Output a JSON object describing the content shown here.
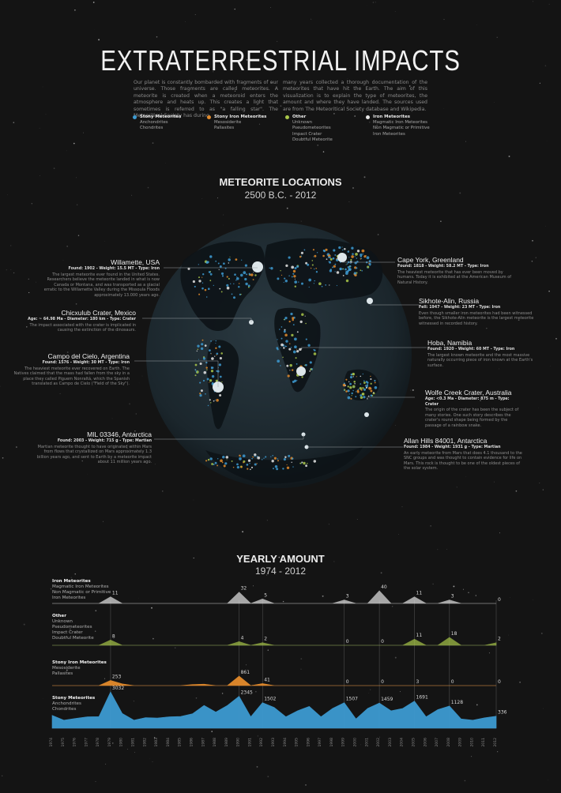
{
  "header": {
    "title": "EXTRATERRESTRIAL IMPACTS",
    "intro_left": "Our planet is constantly bombarded with fragments of our universe. Those fragments are called meteorites. A meteorite is created when a meteoroid enters the atmosphere and heats up. This creates a light that sometimes is referred to as \"a falling star\". The Meteoritical Society has during",
    "intro_right": "many years collected a thorough documentation of the meteorites that have hit the Earth. The aim of this visualization is to explain the type of meteorites, the amount and where they have landed. The sources used are from The Meteoritical Society database and Wikipedia."
  },
  "legend": [
    {
      "head": "Stony Meteorites",
      "items": [
        "Anchondrites",
        "Chondrites"
      ],
      "color": "#3d9ad1"
    },
    {
      "head": "Stony Iron Meteorites",
      "items": [
        "Mesosiderite",
        "Pallasites"
      ],
      "color": "#e38b2c"
    },
    {
      "head": "Other",
      "items": [
        "Unknown",
        "Pseudometeorites",
        "Impact Crater",
        "Doubtful Meteorite"
      ],
      "color": "#a9c74a"
    },
    {
      "head": "Iron Meteorites",
      "items": [
        "Magmatic Iron Meteorites",
        "Non Magmatic or Primitive",
        "Iron Meteorites"
      ],
      "color": "#e6e6e6"
    }
  ],
  "map": {
    "title": "METEORITE LOCATIONS",
    "subtitle": "2500 B.C. - 2012",
    "annotations": [
      {
        "name": "Willamette, USA",
        "meta": "Found: 1902 - Weight: 15.5 MT - Type: Iron",
        "desc": "The largest meteorite ever found in the United States. Researchers believe the meteorite landed in what is now Canada or Montana, and was transported as a glacial erratic to the Willamette Valley during the Missoula Floods approximately 13.000 years ago."
      },
      {
        "name": "Chicxulub Crater, Mexico",
        "meta": "Age: ~ 64.98 Ma - Diameter: 180 km - Type: Crater",
        "desc": "The impact associated with the crater is implicated in causing the extinction of the dinosaurs."
      },
      {
        "name": "Campo del Cielo, Argentina",
        "meta": "Found: 1576 - Weight: 30 MT - Type: Iron",
        "desc": "The heaviest meteorite ever recovered on Earth. The Natives claimed that the mass had fallen from the sky in a place they called Piguem Nonraltá, which the Spanish translated as Campo de Cielo (\"Field of the Sky\")."
      },
      {
        "name": "MIL 03346, Antarctica",
        "meta": "Found: 2003 - Weight: 715 g - Type: Martian",
        "desc": "Martian meteorite thought to have originated within Mars from flows that crystallized on Mars approximately 1.3 billion years ago, and sent to Earth by a meteorite impact about 11 million years ago."
      },
      {
        "name": "Cape York, Greenland",
        "meta": "Found: 1818 - Weight: 58.2 MT - Type: Iron",
        "desc": "The heaviest meteorite that has ever been moved by humans. Today it is exhibited at the American Museum of Natural History."
      },
      {
        "name": "Sikhote-Alin, Russia",
        "meta": "Fell: 1947 - Weight: 23 MT - Type: Iron",
        "desc": "Even though smaller iron meteorites had been witnessed before, the Sikhote-Alin meteorite is the largest meteorite witnessed in recorded history."
      },
      {
        "name": "Hoba, Namibia",
        "meta": "Found: 1920 - Weight: 60 MT - Type: Iron",
        "desc": "The largest known meteorite and the most massive naturally occurring piece of iron known at the Earth's surface."
      },
      {
        "name": "Wolfe Creek Crater, Australia",
        "meta": "Age: <0.3 Ma - Diameter: 875 m - Type: Crater",
        "desc": "The origin of the crater has been the subject of many stories. One such story describes the crater's round shape being formed by the passage of a rainbow snake."
      },
      {
        "name": "Allan Hills 84001, Antarctica",
        "meta": "Found: 1984 - Weight: 1931 g - Type: Martian",
        "desc": "An early meteorite from Mars that does 4.1 thousand to the SNC groups and was thought to contain evidence for life on Mars. This rock is thought to be one of the oldest pieces of the solar system."
      }
    ]
  },
  "chart_title": "YEARLY AMOUNT",
  "chart_subtitle": "1974 - 2012",
  "categories": [
    {
      "head": "Iron Meteorites",
      "items": [
        "Magmatic Iron Meteorites",
        "Non Magmatic or Primitive",
        "Iron Meteorites"
      ]
    },
    {
      "head": "Other",
      "items": [
        "Unknown",
        "Pseudometeorites",
        "Impact Crater",
        "Doubtful Meteorite"
      ]
    },
    {
      "head": "Stony Iron Meteorites",
      "items": [
        "Mesosiderite",
        "Pallasites"
      ]
    },
    {
      "head": "Stony Meteorites",
      "items": [
        "Anchondrites",
        "Chondrites"
      ]
    }
  ],
  "colors": {
    "stony": "#3d9ad1",
    "stony_iron": "#e38b2c",
    "other": "#a9c74a",
    "iron": "#e6e6e6"
  },
  "chart_data": {
    "type": "area",
    "x": [
      "1974",
      "1975",
      "1976",
      "1977",
      "1978",
      "1979",
      "1980",
      "1981",
      "1982",
      "1983",
      "1984",
      "1985",
      "1986",
      "1987",
      "1988",
      "1989",
      "1990",
      "1991",
      "1992",
      "1993",
      "1994",
      "1995",
      "1996",
      "1997",
      "1998",
      "1999",
      "2000",
      "2001",
      "2002",
      "2003",
      "2004",
      "2005",
      "2006",
      "2007",
      "2008",
      "2009",
      "2010",
      "2011",
      "2012"
    ],
    "series": [
      {
        "name": "Stony Meteorites",
        "values": [
          380,
          150,
          220,
          300,
          310,
          3032,
          500,
          150,
          260,
          240,
          300,
          320,
          480,
          1200,
          600,
          1200,
          2345,
          300,
          1502,
          1000,
          300,
          700,
          1100,
          300,
          900,
          1507,
          200,
          900,
          1459,
          700,
          900,
          1691,
          300,
          800,
          1128,
          200,
          150,
          250,
          336
        ]
      },
      {
        "name": "Stony Iron Meteorites",
        "values": [
          0,
          0,
          0,
          0,
          0,
          253,
          30,
          0,
          0,
          0,
          0,
          0,
          10,
          20,
          0,
          0,
          861,
          0,
          41,
          0,
          0,
          0,
          0,
          0,
          0,
          0,
          0,
          0,
          0,
          0,
          0,
          0,
          0,
          0,
          0,
          0,
          0,
          0,
          0
        ]
      },
      {
        "name": "Other",
        "values": [
          0,
          0,
          0,
          0,
          0,
          8,
          0,
          0,
          0,
          0,
          0,
          0,
          0,
          0,
          0,
          0,
          4,
          0,
          2,
          0,
          0,
          0,
          0,
          0,
          0,
          0,
          0,
          0,
          0,
          0,
          0,
          11,
          0,
          0,
          18,
          0,
          0,
          0,
          2
        ]
      },
      {
        "name": "Iron Meteorites",
        "values": [
          0,
          0,
          0,
          0,
          0,
          11,
          0,
          0,
          0,
          0,
          0,
          0,
          0,
          0,
          0,
          0,
          32,
          0,
          5,
          0,
          0,
          0,
          0,
          0,
          0,
          3,
          0,
          0,
          40,
          0,
          0,
          11,
          0,
          0,
          3,
          0,
          0,
          0,
          0
        ]
      }
    ],
    "labels": [
      {
        "series": "Iron Meteorites",
        "year": "1979",
        "text": "11"
      },
      {
        "series": "Iron Meteorites",
        "year": "1990",
        "text": "32"
      },
      {
        "series": "Iron Meteorites",
        "year": "1992",
        "text": "5"
      },
      {
        "series": "Iron Meteorites",
        "year": "1999",
        "text": "3"
      },
      {
        "series": "Iron Meteorites",
        "year": "2002",
        "text": "40"
      },
      {
        "series": "Iron Meteorites",
        "year": "2005",
        "text": "11"
      },
      {
        "series": "Iron Meteorites",
        "year": "2008",
        "text": "3"
      },
      {
        "series": "Iron Meteorites",
        "year": "2012",
        "text": "0"
      },
      {
        "series": "Other",
        "year": "1979",
        "text": "8"
      },
      {
        "series": "Other",
        "year": "1990",
        "text": "4"
      },
      {
        "series": "Other",
        "year": "1992",
        "text": "2"
      },
      {
        "series": "Other",
        "year": "1999",
        "text": "0"
      },
      {
        "series": "Other",
        "year": "2002",
        "text": "0"
      },
      {
        "series": "Other",
        "year": "2005",
        "text": "11"
      },
      {
        "series": "Other",
        "year": "2008",
        "text": "18"
      },
      {
        "series": "Other",
        "year": "2012",
        "text": "2"
      },
      {
        "series": "Stony Iron Meteorites",
        "year": "1979",
        "text": "253"
      },
      {
        "series": "Stony Iron Meteorites",
        "year": "1990",
        "text": "861"
      },
      {
        "series": "Stony Iron Meteorites",
        "year": "1992",
        "text": "41"
      },
      {
        "series": "Stony Iron Meteorites",
        "year": "1999",
        "text": "0"
      },
      {
        "series": "Stony Iron Meteorites",
        "year": "2002",
        "text": "0"
      },
      {
        "series": "Stony Iron Meteorites",
        "year": "2005",
        "text": "3"
      },
      {
        "series": "Stony Iron Meteorites",
        "year": "2008",
        "text": "0"
      },
      {
        "series": "Stony Iron Meteorites",
        "year": "2012",
        "text": "0"
      },
      {
        "series": "Stony Meteorites",
        "year": "1979",
        "text": "3032"
      },
      {
        "series": "Stony Meteorites",
        "year": "1990",
        "text": "2345"
      },
      {
        "series": "Stony Meteorites",
        "year": "1992",
        "text": "1502"
      },
      {
        "series": "Stony Meteorites",
        "year": "1999",
        "text": "1507"
      },
      {
        "series": "Stony Meteorites",
        "year": "2002",
        "text": "1459"
      },
      {
        "series": "Stony Meteorites",
        "year": "2005",
        "text": "1691"
      },
      {
        "series": "Stony Meteorites",
        "year": "2008",
        "text": "1128"
      },
      {
        "series": "Stony Meteorites",
        "year": "2012",
        "text": "336"
      }
    ]
  }
}
